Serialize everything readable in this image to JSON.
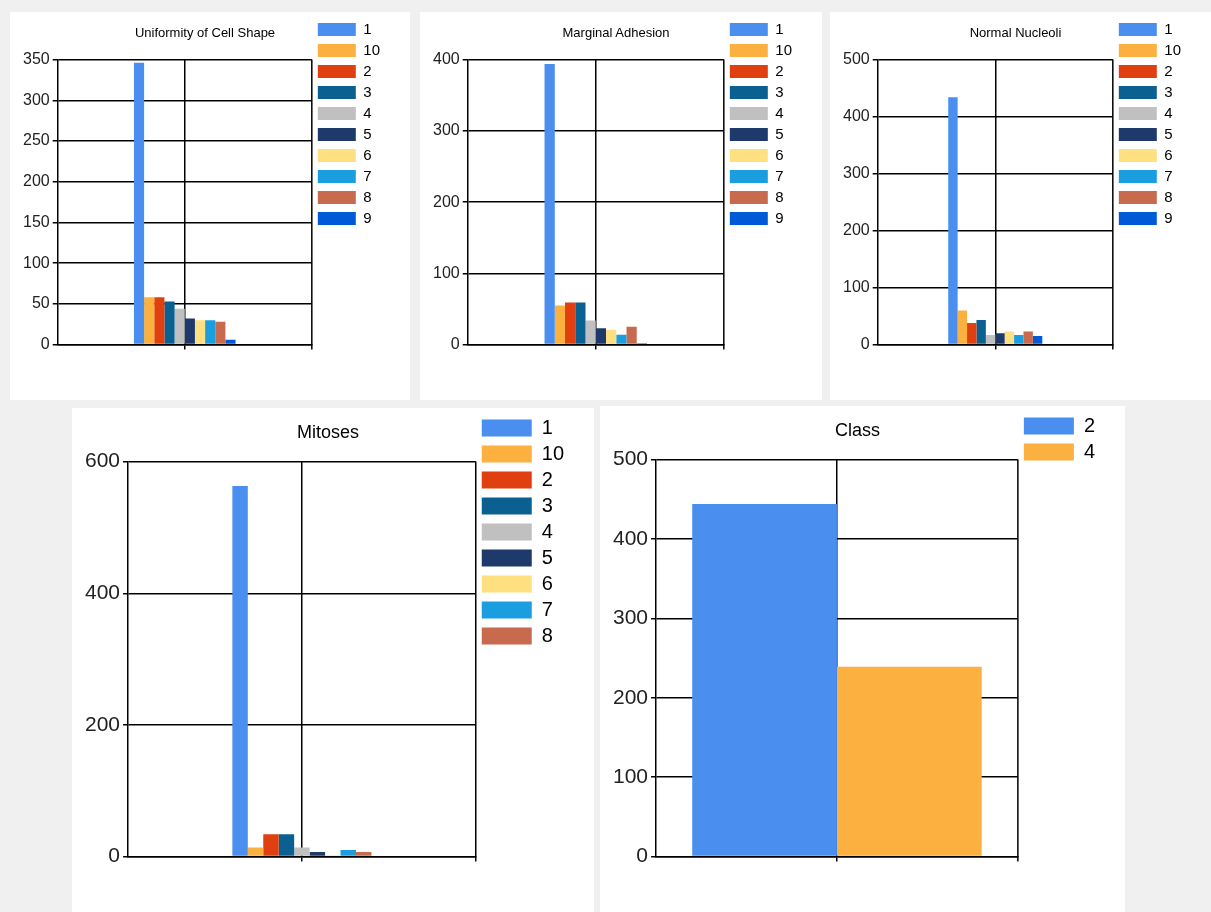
{
  "chart_data": [
    {
      "type": "bar",
      "title": "Uniformity of Cell Shape",
      "categories": [
        null
      ],
      "ylim": [
        0,
        350
      ],
      "yticks": [
        0,
        50,
        100,
        150,
        200,
        250,
        300,
        350
      ],
      "grid": true,
      "legend": "top right",
      "series": [
        {
          "name": "1",
          "color": "#4a8ef0",
          "values": [
            346
          ]
        },
        {
          "name": "10",
          "color": "#fbb040",
          "values": [
            58
          ]
        },
        {
          "name": "2",
          "color": "#e04010",
          "values": [
            58
          ]
        },
        {
          "name": "3",
          "color": "#0a6090",
          "values": [
            53
          ]
        },
        {
          "name": "4",
          "color": "#c0c0c0",
          "values": [
            44
          ]
        },
        {
          "name": "5",
          "color": "#1e3a6a",
          "values": [
            32
          ]
        },
        {
          "name": "6",
          "color": "#ffe080",
          "values": [
            30
          ]
        },
        {
          "name": "7",
          "color": "#1a9ee0",
          "values": [
            30
          ]
        },
        {
          "name": "8",
          "color": "#c86a4e",
          "values": [
            28
          ]
        },
        {
          "name": "9",
          "color": "#005ad8",
          "values": [
            6
          ]
        }
      ]
    },
    {
      "type": "bar",
      "title": "Marginal Adhesion",
      "categories": [
        null
      ],
      "ylim": [
        0,
        400
      ],
      "yticks": [
        0,
        100,
        200,
        300,
        400
      ],
      "grid": true,
      "legend": "top right",
      "series": [
        {
          "name": "1",
          "color": "#4a8ef0",
          "values": [
            394
          ]
        },
        {
          "name": "10",
          "color": "#fbb040",
          "values": [
            55
          ]
        },
        {
          "name": "2",
          "color": "#e04010",
          "values": [
            59
          ]
        },
        {
          "name": "3",
          "color": "#0a6090",
          "values": [
            59
          ]
        },
        {
          "name": "4",
          "color": "#c0c0c0",
          "values": [
            34
          ]
        },
        {
          "name": "5",
          "color": "#1e3a6a",
          "values": [
            23
          ]
        },
        {
          "name": "6",
          "color": "#ffe080",
          "values": [
            21
          ]
        },
        {
          "name": "7",
          "color": "#1a9ee0",
          "values": [
            14
          ]
        },
        {
          "name": "8",
          "color": "#c86a4e",
          "values": [
            25
          ]
        },
        {
          "name": "9",
          "color": "#005ad8",
          "values": [
            2
          ]
        }
      ]
    },
    {
      "type": "bar",
      "title": "Normal Nucleoli",
      "categories": [
        null
      ],
      "ylim": [
        0,
        500
      ],
      "yticks": [
        0,
        100,
        200,
        300,
        400,
        500
      ],
      "grid": true,
      "legend": "top right",
      "series": [
        {
          "name": "1",
          "color": "#4a8ef0",
          "values": [
            434
          ]
        },
        {
          "name": "10",
          "color": "#fbb040",
          "values": [
            60
          ]
        },
        {
          "name": "2",
          "color": "#e04010",
          "values": [
            38
          ]
        },
        {
          "name": "3",
          "color": "#0a6090",
          "values": [
            43
          ]
        },
        {
          "name": "4",
          "color": "#c0c0c0",
          "values": [
            17
          ]
        },
        {
          "name": "5",
          "color": "#1e3a6a",
          "values": [
            20
          ]
        },
        {
          "name": "6",
          "color": "#ffe080",
          "values": [
            23
          ]
        },
        {
          "name": "7",
          "color": "#1a9ee0",
          "values": [
            17
          ]
        },
        {
          "name": "8",
          "color": "#c86a4e",
          "values": [
            23
          ]
        },
        {
          "name": "9",
          "color": "#005ad8",
          "values": [
            15
          ]
        }
      ]
    },
    {
      "type": "bar",
      "title": "Mitoses",
      "categories": [
        null
      ],
      "ylim": [
        0,
        600
      ],
      "yticks": [
        0,
        200,
        400,
        600
      ],
      "grid": true,
      "legend": "top right",
      "series": [
        {
          "name": "1",
          "color": "#4a8ef0",
          "values": [
            563
          ]
        },
        {
          "name": "10",
          "color": "#fbb040",
          "values": [
            14
          ]
        },
        {
          "name": "2",
          "color": "#e04010",
          "values": [
            34
          ]
        },
        {
          "name": "3",
          "color": "#0a6090",
          "values": [
            34
          ]
        },
        {
          "name": "4",
          "color": "#c0c0c0",
          "values": [
            14
          ]
        },
        {
          "name": "5",
          "color": "#1e3a6a",
          "values": [
            7
          ]
        },
        {
          "name": "6",
          "color": "#ffe080",
          "values": [
            2
          ]
        },
        {
          "name": "7",
          "color": "#1a9ee0",
          "values": [
            10
          ]
        },
        {
          "name": "8",
          "color": "#c86a4e",
          "values": [
            7
          ]
        }
      ]
    },
    {
      "type": "bar",
      "title": "Class",
      "categories": [
        null
      ],
      "ylim": [
        0,
        500
      ],
      "yticks": [
        0,
        100,
        200,
        300,
        400,
        500
      ],
      "grid": true,
      "legend": "top right",
      "series": [
        {
          "name": "2",
          "color": "#4a8ef0",
          "values": [
            444
          ]
        },
        {
          "name": "4",
          "color": "#fbb040",
          "values": [
            239
          ]
        }
      ]
    }
  ]
}
